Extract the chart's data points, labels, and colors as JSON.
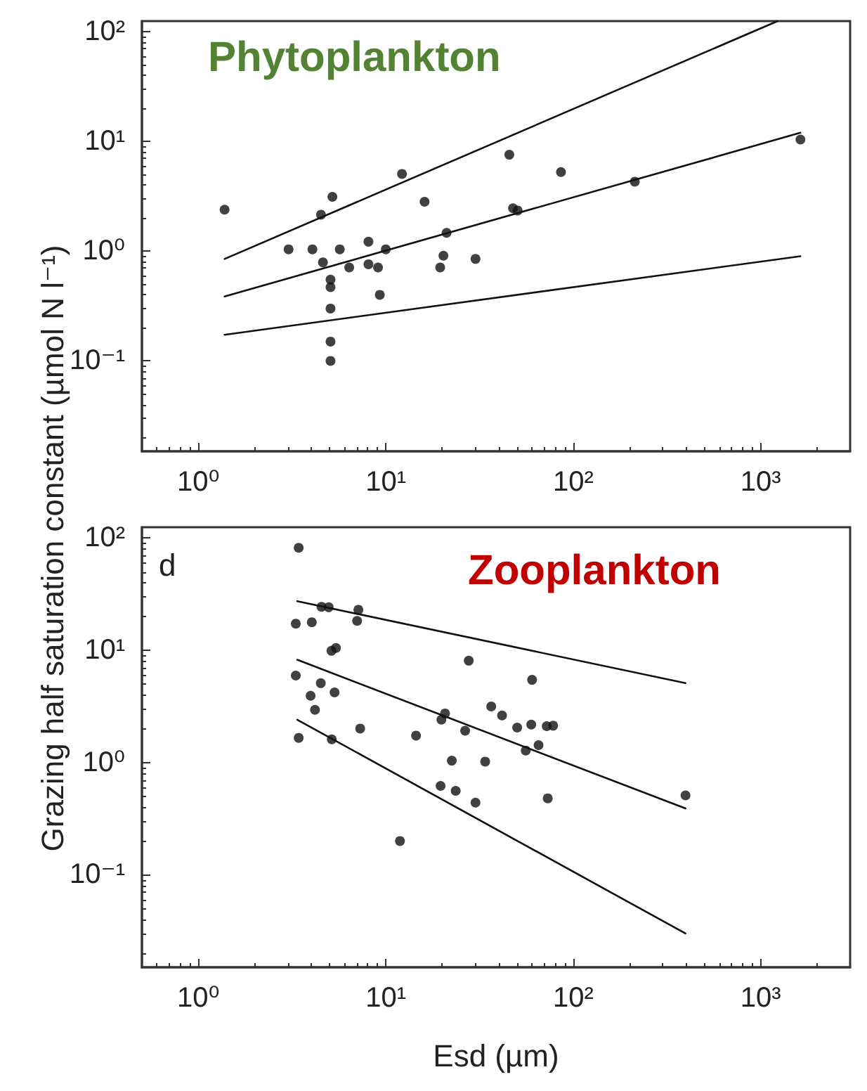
{
  "chart_data": [
    {
      "type": "scatter",
      "title": "Phytoplankton",
      "ylabel": "Grazing half saturation constant (µmol N l⁻¹)",
      "log": "xy",
      "grid": false,
      "marker": "circle",
      "line_style": "solid",
      "xlim": [
        0.5,
        3000
      ],
      "ylim": [
        0.015,
        125
      ],
      "xticks": [
        {
          "value": 1,
          "label": "10⁰"
        },
        {
          "value": 10,
          "label": "10¹"
        },
        {
          "value": 100,
          "label": "10²"
        },
        {
          "value": 1000,
          "label": "10³"
        }
      ],
      "yticks": [
        {
          "value": 0.1,
          "label": "10⁻¹"
        },
        {
          "value": 1,
          "label": "10⁰"
        },
        {
          "value": 10,
          "label": "10¹"
        },
        {
          "value": 100,
          "label": "10²"
        }
      ],
      "series": [
        {
          "type": "scatter",
          "color": "#111111",
          "x": [
            1.38,
            5.19,
            4.51,
            12.2,
            16.1,
            3.03,
            4.06,
            5.68,
            4.62,
            6.38,
            8.08,
            8.08,
            9.09,
            10.0,
            9.29,
            21.1,
            20.3,
            19.5,
            30.1,
            5.07,
            5.07,
            5.07,
            5.07,
            5.07,
            45.6,
            86,
            47.7,
            50.5,
            213,
            1629
          ],
          "values": [
            2.39,
            3.13,
            2.15,
            5.06,
            2.82,
            1.04,
            1.04,
            1.04,
            0.79,
            0.71,
            1.22,
            0.76,
            0.71,
            1.04,
            0.4,
            1.47,
            0.91,
            0.71,
            0.85,
            0.55,
            0.47,
            0.3,
            0.15,
            0.1,
            7.57,
            5.26,
            2.46,
            2.35,
            4.3,
            10.4
          ]
        },
        {
          "type": "line",
          "marker": "none",
          "color": "#111111",
          "x": [
            1.38,
            1230
          ],
          "values": [
            0.85,
            125
          ]
        },
        {
          "type": "line",
          "marker": "none",
          "color": "#111111",
          "x": [
            1.38,
            1629
          ],
          "values": [
            0.387,
            12.0
          ]
        },
        {
          "type": "line",
          "marker": "none",
          "color": "#111111",
          "x": [
            1.38,
            1629
          ],
          "values": [
            0.173,
            0.9
          ]
        }
      ]
    },
    {
      "type": "scatter",
      "title": "Zooplankton",
      "xlabel": "Esd (µm)",
      "annotations": [
        "d"
      ],
      "log": "xy",
      "grid": false,
      "marker": "circle",
      "line_style": "solid",
      "xlim": [
        0.5,
        3000
      ],
      "ylim": [
        0.015,
        125
      ],
      "xticks": [
        {
          "value": 1,
          "label": "10⁰"
        },
        {
          "value": 10,
          "label": "10¹"
        },
        {
          "value": 100,
          "label": "10²"
        },
        {
          "value": 1000,
          "label": "10³"
        }
      ],
      "yticks": [
        {
          "value": 0.1,
          "label": "10⁻¹"
        },
        {
          "value": 1,
          "label": "10⁰"
        },
        {
          "value": 10,
          "label": "10¹"
        },
        {
          "value": 100,
          "label": "10²"
        }
      ],
      "series": [
        {
          "type": "scatter",
          "color": "#111111",
          "x": [
            3.43,
            3.31,
            4.03,
            4.54,
            4.96,
            7.14,
            7.03,
            5.13,
            5.42,
            3.31,
            4.5,
            3.97,
            4.19,
            5.33,
            3.43,
            5.15,
            7.3,
            14.5,
            19.8,
            20.7,
            26.5,
            27.7,
            22.5,
            33.9,
            19.6,
            23.6,
            30.1,
            11.9,
            36.5,
            41.7,
            50.2,
            59.7,
            60.3,
            55.8,
            65.3,
            72.2,
            78.1,
            73.1,
            397
          ],
          "values": [
            82,
            17.3,
            17.8,
            24.4,
            24.2,
            23.0,
            18.3,
            9.9,
            10.5,
            5.96,
            5.1,
            3.94,
            2.95,
            4.22,
            1.66,
            1.61,
            2.01,
            1.74,
            2.41,
            2.74,
            1.92,
            8.09,
            1.04,
            1.02,
            0.62,
            0.56,
            0.44,
            0.2,
            3.16,
            2.63,
            2.05,
            2.18,
            5.46,
            1.28,
            1.43,
            2.11,
            2.13,
            0.48,
            0.51
          ]
        },
        {
          "type": "line",
          "marker": "none",
          "color": "#111111",
          "x": [
            3.37,
            397
          ],
          "values": [
            27.4,
            5.1
          ]
        },
        {
          "type": "line",
          "marker": "none",
          "color": "#111111",
          "x": [
            3.37,
            397
          ],
          "values": [
            8.24,
            0.39
          ]
        },
        {
          "type": "line",
          "marker": "none",
          "color": "#111111",
          "x": [
            3.37,
            397
          ],
          "values": [
            2.41,
            0.03
          ]
        }
      ]
    }
  ]
}
